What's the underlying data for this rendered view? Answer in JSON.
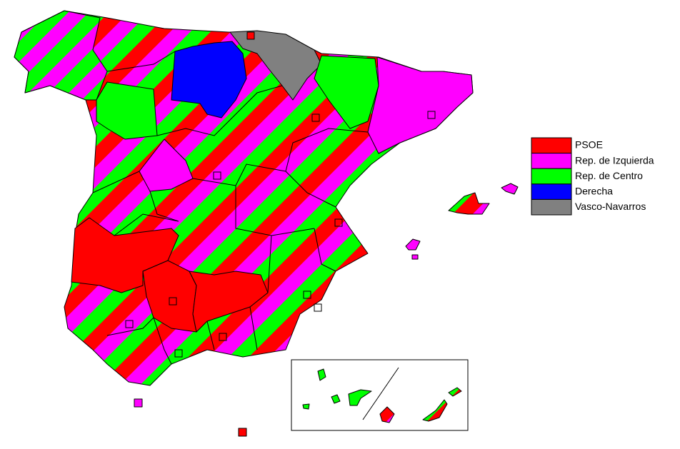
{
  "legend": {
    "items": [
      {
        "label": "PSOE",
        "color": "#ff0000"
      },
      {
        "label": "Rep. de Izquierda",
        "color": "#ff00ff"
      },
      {
        "label": "Rep. de Centro",
        "color": "#00ff00"
      },
      {
        "label": "Derecha",
        "color": "#0000ff"
      },
      {
        "label": "Vasco-Navarros",
        "color": "#808080"
      }
    ]
  }
}
